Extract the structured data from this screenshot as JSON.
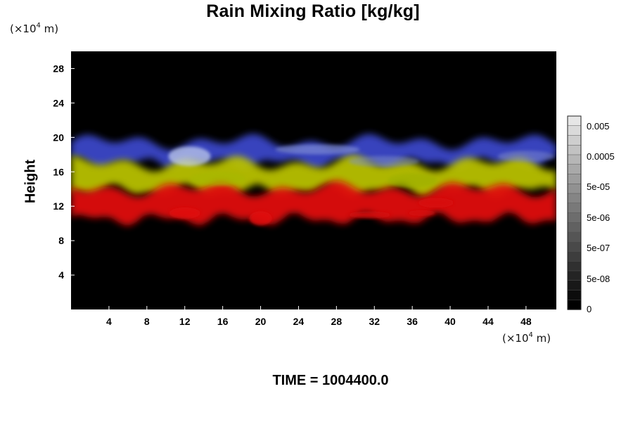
{
  "chart_data": {
    "type": "heatmap",
    "title": "Rain Mixing Ratio [kg/kg]",
    "ylabel": "Height",
    "y_unit": {
      "prefix": "(×10",
      "exp": "4",
      "suffix": " m)"
    },
    "x_unit": {
      "prefix": "(×10",
      "exp": "4",
      "suffix": " m)"
    },
    "xlim": [
      0,
      51.2
    ],
    "ylim": [
      0,
      30
    ],
    "x_ticks": [
      4,
      8,
      12,
      16,
      20,
      24,
      28,
      32,
      36,
      40,
      44,
      48
    ],
    "y_ticks": [
      4,
      8,
      12,
      16,
      20,
      24,
      28
    ],
    "colorbar": {
      "labels": [
        "0.005",
        "0.0005",
        "5e-05",
        "5e-06",
        "5e-07",
        "5e-08",
        "0"
      ],
      "levels": 20
    },
    "bands": [
      {
        "name": "blue",
        "color": "#3a46c8",
        "y_range": [
          17,
          19.5
        ]
      },
      {
        "name": "yellow",
        "color": "#b8c000",
        "y_range": [
          13.8,
          17
        ]
      },
      {
        "name": "red",
        "color": "#e01010",
        "y_range": [
          10.5,
          14
        ]
      }
    ],
    "background": "#000000",
    "grid": false
  },
  "footer": "TIME = 1004400.0"
}
